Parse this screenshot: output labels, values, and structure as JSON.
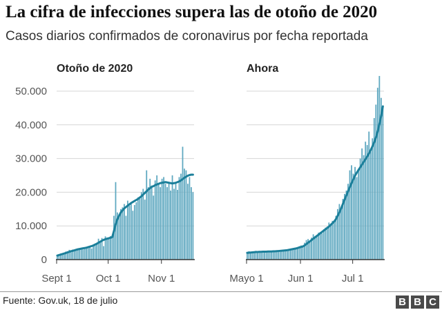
{
  "title": "La cifra de infecciones supera las de otoño de 2020",
  "subtitle": "Casos diarios confirmados de coronavirus por fecha reportada",
  "source": "Fuente: Gov.uk, 18 de julio",
  "logo": [
    "B",
    "B",
    "C"
  ],
  "colors": {
    "bar": "#5fa8c0",
    "line": "#1b7f9a",
    "grid": "#d6d6d6",
    "axis": "#333333",
    "text": "#555555"
  },
  "chart_data": [
    {
      "type": "bar",
      "panel_title": "Otoño de 2020",
      "xlabel": "",
      "ylabel": "",
      "ylim": [
        0,
        55000
      ],
      "yticks": [
        0,
        10000,
        20000,
        30000,
        40000,
        50000
      ],
      "ytick_labels": [
        "0",
        "10.000",
        "20.000",
        "30.000",
        "40.000",
        "50.000"
      ],
      "xticks": [
        {
          "day": 0,
          "label": "Sept 1"
        },
        {
          "day": 30,
          "label": "Oct 1"
        },
        {
          "day": 61,
          "label": "Nov 1"
        }
      ],
      "series": [
        {
          "kind": "bars",
          "values": [
            1300,
            1600,
            1800,
            1900,
            2000,
            2400,
            2500,
            2900,
            2300,
            3000,
            2800,
            3200,
            3300,
            3100,
            3500,
            3000,
            3400,
            3600,
            3500,
            3800,
            3300,
            4000,
            4500,
            5000,
            6200,
            5500,
            6400,
            4000,
            6900,
            6500,
            6200,
            7000,
            6600,
            13000,
            23000,
            14000,
            13500,
            15000,
            15500,
            16500,
            13000,
            17500,
            16000,
            16800,
            14500,
            16200,
            17000,
            18500,
            18000,
            20000,
            21000,
            17800,
            26500,
            21500,
            24000,
            22000,
            19000,
            23500,
            25000,
            22500,
            21500,
            24000,
            24500,
            22500,
            21500,
            23000,
            20500,
            25000,
            21000,
            22500,
            20700,
            24500,
            25500,
            33500,
            27000,
            26500,
            22500,
            24500,
            21500,
            20000
          ]
        },
        {
          "kind": "line",
          "name": "",
          "values": [
            1200,
            1350,
            1500,
            1650,
            1800,
            1950,
            2150,
            2300,
            2500,
            2600,
            2750,
            2900,
            3050,
            3150,
            3250,
            3350,
            3450,
            3550,
            3700,
            3850,
            4000,
            4200,
            4450,
            4700,
            5000,
            5300,
            5600,
            5850,
            6050,
            6200,
            6350,
            6500,
            6650,
            8500,
            10500,
            12000,
            13000,
            14000,
            14600,
            15200,
            15600,
            16000,
            16400,
            16800,
            17100,
            17400,
            17700,
            18000,
            18400,
            18800,
            19300,
            19800,
            20300,
            20800,
            21200,
            21600,
            21800,
            22100,
            22300,
            22500,
            22700,
            22800,
            22900,
            23000,
            22900,
            22800,
            22700,
            22600,
            22700,
            22800,
            23000,
            23200,
            23500,
            23900,
            24300,
            24600,
            24900,
            25100,
            25200,
            25200
          ]
        }
      ]
    },
    {
      "type": "bar",
      "panel_title": "Ahora",
      "xlabel": "",
      "ylabel": "",
      "ylim": [
        0,
        55000
      ],
      "xticks": [
        {
          "day": 0,
          "label": "Mayo 1"
        },
        {
          "day": 31,
          "label": "Jun 1"
        },
        {
          "day": 61,
          "label": "Jul 1"
        }
      ],
      "series": [
        {
          "kind": "bars",
          "values": [
            2300,
            2500,
            2200,
            2400,
            2100,
            2600,
            2300,
            2400,
            2200,
            2500,
            2300,
            2600,
            2400,
            2200,
            2500,
            2300,
            2700,
            2500,
            2400,
            2600,
            2800,
            2600,
            2700,
            3000,
            2800,
            3200,
            3300,
            3000,
            3500,
            3700,
            4000,
            4200,
            3900,
            5000,
            5800,
            6100,
            5500,
            6500,
            7500,
            7000,
            7300,
            8000,
            8200,
            7800,
            9000,
            9500,
            9800,
            11000,
            10500,
            11500,
            11000,
            13000,
            15000,
            16500,
            15000,
            18000,
            19500,
            20500,
            22500,
            26500,
            28000,
            25500,
            27500,
            24500,
            27000,
            30000,
            33000,
            31000,
            35000,
            34000,
            38000,
            32000,
            36000,
            42000,
            46000,
            51000,
            54500,
            48000,
            45000
          ]
        },
        {
          "kind": "line",
          "name": "",
          "values": [
            2000,
            2050,
            2100,
            2150,
            2200,
            2250,
            2250,
            2300,
            2300,
            2350,
            2350,
            2350,
            2400,
            2400,
            2400,
            2450,
            2450,
            2500,
            2550,
            2600,
            2650,
            2700,
            2750,
            2800,
            2900,
            3000,
            3100,
            3200,
            3300,
            3450,
            3600,
            3750,
            3900,
            4200,
            4600,
            5000,
            5400,
            5800,
            6200,
            6600,
            7000,
            7400,
            7800,
            8200,
            8600,
            9000,
            9400,
            9800,
            10300,
            10800,
            11300,
            12000,
            13000,
            14000,
            15200,
            16500,
            17800,
            19000,
            20300,
            21500,
            22700,
            23800,
            24900,
            25800,
            26600,
            27400,
            28200,
            29000,
            29800,
            30600,
            31500,
            32500,
            33600,
            34800,
            36200,
            38000,
            40200,
            42600,
            45500
          ]
        }
      ]
    }
  ]
}
